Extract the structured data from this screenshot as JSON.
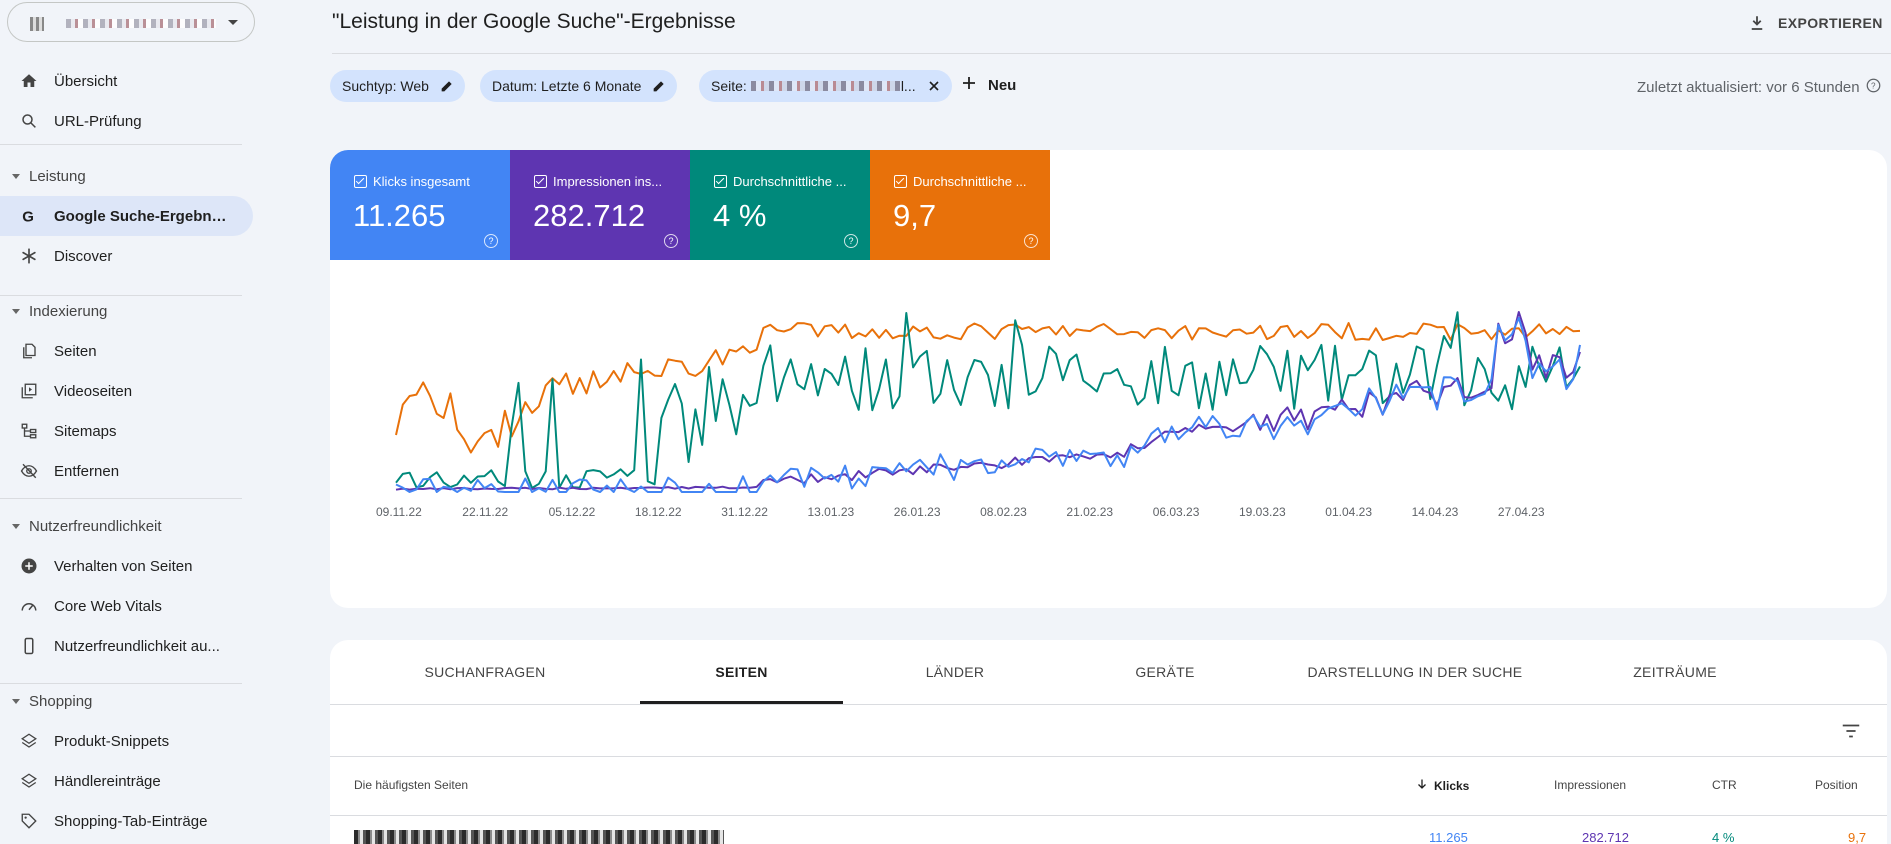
{
  "sidebar": {
    "items": {
      "uebersicht": "Übersicht",
      "url_pruefung": "URL-Prüfung",
      "google_suche": "Google Suche-Ergebnis...",
      "discover": "Discover",
      "seiten": "Seiten",
      "videoseiten": "Videoseiten",
      "sitemaps": "Sitemaps",
      "entfernen": "Entfernen",
      "verhalten": "Verhalten von Seiten",
      "core_web_vitals": "Core Web Vitals",
      "nutzerfreundlichkeit_auf": "Nutzerfreundlichkeit au...",
      "produkt_snippets": "Produkt-Snippets",
      "haendlereintraege": "Händlereinträge",
      "shopping_tab": "Shopping-Tab-Einträge"
    },
    "sections": {
      "leistung": "Leistung",
      "indexierung": "Indexierung",
      "nutzerfreundlichkeit": "Nutzerfreundlichkeit",
      "shopping": "Shopping"
    }
  },
  "header": {
    "title": "\"Leistung in der Google Suche\"-Ergebnisse",
    "export_label": "EXPORTIEREN",
    "last_updated": "Zuletzt aktualisiert: vor 6 Stunden"
  },
  "filters": {
    "search_type": "Suchtyp: Web",
    "date": "Datum: Letzte 6 Monate",
    "page_prefix": "Seite:",
    "page_suffix": "l...",
    "new_label": "Neu"
  },
  "metrics": [
    {
      "label": "Klicks insgesamt",
      "value": "11.265",
      "color": "#4285f4"
    },
    {
      "label": "Impressionen ins...",
      "value": "282.712",
      "color": "#5e35b1"
    },
    {
      "label": "Durchschnittliche ...",
      "value": "4 %",
      "color": "#00897b"
    },
    {
      "label": "Durchschnittliche ...",
      "value": "9,7",
      "color": "#e8710a"
    }
  ],
  "chart_data": {
    "type": "line",
    "x_tick_labels": [
      "09.11.22",
      "22.11.22",
      "05.12.22",
      "18.12.22",
      "31.12.22",
      "13.01.23",
      "26.01.23",
      "08.02.23",
      "21.02.23",
      "06.03.23",
      "19.03.23",
      "01.04.23",
      "14.04.23",
      "27.04.23"
    ],
    "series": [
      {
        "name": "Klicks insgesamt",
        "color": "#4285f4"
      },
      {
        "name": "Impressionen ins...",
        "color": "#5e35b1"
      },
      {
        "name": "Durchschnittliche ...",
        "color": "#00897b"
      },
      {
        "name": "Durchschnittliche ...",
        "color": "#e8710a"
      }
    ],
    "grid": false
  },
  "tabs": [
    "SUCHANFRAGEN",
    "SEITEN",
    "LÄNDER",
    "GERÄTE",
    "DARSTELLUNG IN DER SUCHE",
    "ZEITRÄUME"
  ],
  "table": {
    "headers": {
      "page": "Die häufigsten Seiten",
      "clicks": "Klicks",
      "impressions": "Impressionen",
      "ctr": "CTR",
      "position": "Position"
    },
    "row": {
      "clicks": "11.265",
      "impressions": "282.712",
      "ctr": "4 %",
      "position": "9,7"
    }
  }
}
